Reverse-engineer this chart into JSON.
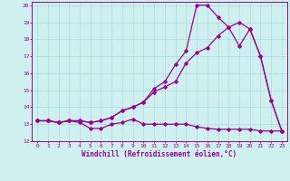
{
  "title": "",
  "xlabel": "Windchill (Refroidissement éolien,°C)",
  "ylabel": "",
  "background_color": "#cef0ee",
  "grid_color": "#aadddd",
  "line_color": "#990099",
  "xlim": [
    -0.5,
    23.5
  ],
  "ylim": [
    12,
    20.2
  ],
  "xticks": [
    0,
    1,
    2,
    3,
    4,
    5,
    6,
    7,
    8,
    9,
    10,
    11,
    12,
    13,
    14,
    15,
    16,
    17,
    18,
    19,
    20,
    21,
    22,
    23
  ],
  "yticks": [
    12,
    13,
    14,
    15,
    16,
    17,
    18,
    19,
    20
  ],
  "line1_x": [
    0,
    1,
    2,
    3,
    4,
    5,
    6,
    7,
    8,
    9,
    10,
    11,
    12,
    13,
    14,
    15,
    16,
    17,
    18,
    19,
    20,
    21,
    22,
    23
  ],
  "line1_y": [
    13.2,
    13.2,
    13.1,
    13.2,
    13.1,
    12.75,
    12.75,
    13.0,
    13.1,
    13.3,
    13.0,
    13.0,
    13.0,
    13.0,
    13.0,
    12.85,
    12.75,
    12.7,
    12.7,
    12.7,
    12.7,
    12.6,
    12.6,
    12.6
  ],
  "line2_x": [
    0,
    1,
    2,
    3,
    4,
    5,
    6,
    7,
    8,
    9,
    10,
    11,
    12,
    13,
    14,
    15,
    16,
    17,
    18,
    19,
    20,
    21,
    22,
    23
  ],
  "line2_y": [
    13.2,
    13.2,
    13.1,
    13.2,
    13.2,
    13.1,
    13.2,
    13.4,
    13.8,
    14.0,
    14.3,
    14.9,
    15.2,
    15.5,
    16.6,
    17.2,
    17.5,
    18.2,
    18.7,
    19.0,
    18.6,
    17.0,
    14.4,
    12.6
  ],
  "line3_x": [
    0,
    1,
    2,
    3,
    4,
    5,
    6,
    7,
    8,
    9,
    10,
    11,
    12,
    13,
    14,
    15,
    16,
    17,
    18,
    19,
    20,
    21,
    22,
    23
  ],
  "line3_y": [
    13.2,
    13.2,
    13.1,
    13.2,
    13.2,
    13.1,
    13.2,
    13.4,
    13.8,
    14.0,
    14.3,
    15.1,
    15.5,
    16.5,
    17.3,
    20.0,
    20.0,
    19.3,
    18.7,
    17.6,
    18.6,
    17.0,
    14.4,
    12.6
  ]
}
